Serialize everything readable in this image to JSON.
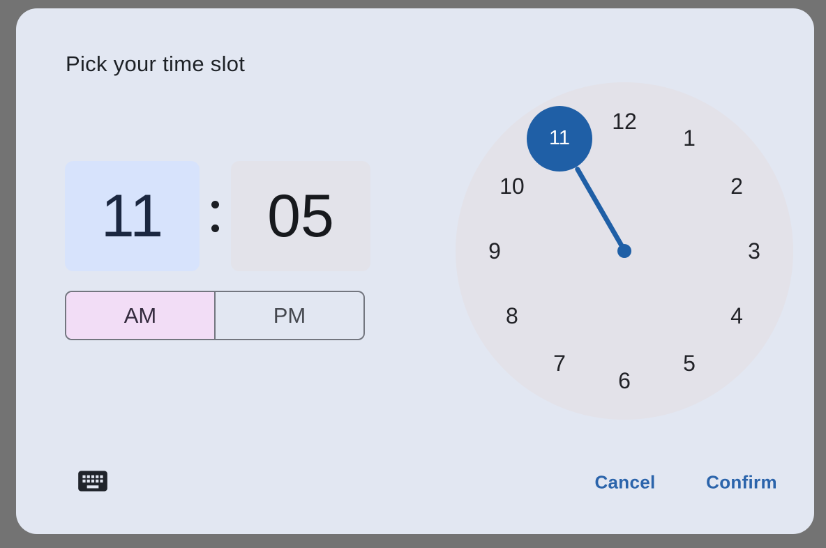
{
  "dialog": {
    "title": "Pick your time slot"
  },
  "time_input": {
    "hour": "11",
    "minute": "05",
    "active_field": "hour"
  },
  "period_toggle": {
    "options": [
      {
        "label": "AM",
        "selected": true
      },
      {
        "label": "PM",
        "selected": false
      }
    ]
  },
  "clock": {
    "numbers": [
      "12",
      "1",
      "2",
      "3",
      "4",
      "5",
      "6",
      "7",
      "8",
      "9",
      "10",
      "11"
    ],
    "selected_hour": "11"
  },
  "actions": {
    "cancel_label": "Cancel",
    "confirm_label": "Confirm"
  },
  "icons": {
    "keyboard": "keyboard-icon",
    "colon_separator": "colon-separator"
  },
  "colors": {
    "scrim": "#737373",
    "dialog_bg": "#e2e7f2",
    "hour_field_bg": "#d7e3fc",
    "hour_field_text": "#1b2740",
    "minute_field_bg": "#e3e3ea",
    "minute_field_text": "#17191d",
    "period_am_bg": "#f2ddf6",
    "period_am_text": "#332a3d",
    "period_pm_text": "#45484f",
    "toggle_border": "#73767f",
    "clock_face_bg": "#e3e2e9",
    "clock_number_text": "#212227",
    "selection_blue": "#1f5fa6",
    "selected_number_text": "#ffffff",
    "action_text_blue": "#2b64ab",
    "title_text": "#1d2126",
    "keyboard_icon": "#20242b"
  }
}
